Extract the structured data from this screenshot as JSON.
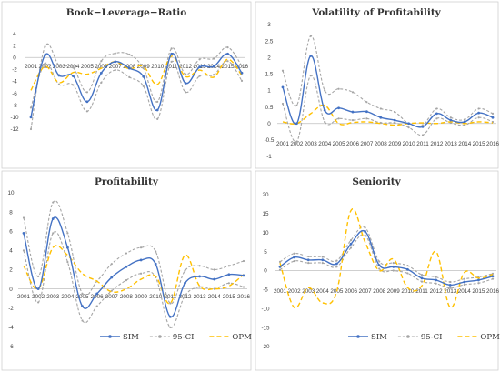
{
  "colors": {
    "SIM": "#4472C4",
    "CI": "#a5a5a5",
    "OPM": "#FFC000"
  },
  "legend": {
    "items": [
      {
        "key": "SIM",
        "label": "SIM",
        "style": "solid-marker"
      },
      {
        "key": "CI",
        "label": "95-CI",
        "style": "dashed-marker"
      },
      {
        "key": "OPM",
        "label": "OPM",
        "style": "dashed"
      }
    ]
  },
  "chart_data": [
    {
      "type": "line",
      "title": "Book−Leverage−Ratio",
      "ylim": [
        -12,
        4
      ],
      "yticks": [
        4,
        2,
        0,
        -2,
        -4,
        -6,
        -8,
        -10,
        -12
      ],
      "categories": [
        "2001",
        "2002",
        "2003",
        "2004",
        "2005",
        "2006",
        "2007",
        "2008",
        "2009",
        "2010",
        "2011",
        "2012",
        "2013",
        "2014",
        "2015",
        "2016"
      ],
      "series": [
        {
          "name": "SIM",
          "values": [
            -10,
            0.4,
            -3,
            -3.1,
            -7.4,
            -2.6,
            -0.7,
            -1.8,
            -3.2,
            -8.8,
            0.6,
            -4.3,
            -1.6,
            -1.5,
            0.6,
            -2.6
          ]
        },
        {
          "name": "95-CI",
          "values": [
            -12,
            1.8,
            -1.3,
            -1.7,
            -5.8,
            -0.6,
            0.7,
            0.5,
            -1.8,
            -7.4,
            1.5,
            -2.8,
            -0.3,
            -0.2,
            1.7,
            -1.4
          ]
        },
        {
          "name": "95-CI",
          "values": [
            -8.4,
            -1.0,
            -4.5,
            -4.6,
            -9.0,
            -4.2,
            -2.1,
            -3.3,
            -4.8,
            -10.3,
            -0.7,
            -5.8,
            -3.1,
            -2.9,
            -0.6,
            -3.9
          ]
        },
        {
          "name": "OPM",
          "values": [
            -5.5,
            -1.5,
            -4.2,
            -2.5,
            -2.8,
            -1.8,
            -0.7,
            -1.9,
            -1.5,
            -4.5,
            0.2,
            -3.2,
            -2.1,
            -3.3,
            -0.3,
            -3.0
          ]
        }
      ]
    },
    {
      "type": "line",
      "title": "Volatility of Profitability",
      "ylim": [
        -1,
        3
      ],
      "yticks": [
        3,
        2.5,
        2,
        1.5,
        1,
        0.5,
        0,
        -0.5,
        -1
      ],
      "categories": [
        "2001",
        "2002",
        "2003",
        "2004",
        "2005",
        "2006",
        "2007",
        "2008",
        "2009",
        "2010",
        "2011",
        "2012",
        "2013",
        "2014",
        "2015",
        "2016"
      ],
      "series": [
        {
          "name": "SIM",
          "values": [
            1.1,
            0.0,
            2.05,
            0.4,
            0.47,
            0.35,
            0.36,
            0.18,
            0.1,
            0.0,
            -0.1,
            0.3,
            0.1,
            0.05,
            0.32,
            0.18
          ]
        },
        {
          "name": "95-CI",
          "values": [
            1.6,
            0.55,
            2.65,
            1.0,
            1.05,
            0.95,
            0.65,
            0.45,
            0.35,
            0.0,
            -0.05,
            0.45,
            0.18,
            0.12,
            0.45,
            0.3
          ]
        },
        {
          "name": "95-CI",
          "values": [
            0.6,
            -0.55,
            1.45,
            0.05,
            0.15,
            0.1,
            0.15,
            0.02,
            0.02,
            -0.12,
            -0.35,
            0.15,
            0.02,
            -0.05,
            0.18,
            0.05
          ]
        },
        {
          "name": "OPM",
          "values": [
            0.05,
            0.0,
            0.3,
            0.55,
            0.0,
            0.03,
            0.05,
            0.0,
            -0.05,
            0.0,
            0.02,
            0.0,
            0.05,
            0.0,
            0.05,
            0.02
          ]
        }
      ]
    },
    {
      "type": "line",
      "title": "Profitability",
      "ylim": [
        -6,
        10
      ],
      "yticks": [
        10,
        8,
        6,
        4,
        2,
        0,
        -2,
        -4,
        -6
      ],
      "categories": [
        "2001",
        "2002",
        "2003",
        "2004",
        "2005",
        "2006",
        "2007",
        "2008",
        "2009",
        "2010",
        "2011",
        "2012",
        "2013",
        "2014",
        "2015",
        "2016"
      ],
      "series": [
        {
          "name": "SIM",
          "values": [
            5.8,
            0.0,
            7.3,
            4.3,
            -1.8,
            -0.5,
            1.2,
            2.3,
            3.0,
            2.6,
            -2.9,
            0.6,
            1.3,
            1.0,
            1.5,
            1.4
          ]
        },
        {
          "name": "95-CI",
          "values": [
            7.4,
            1.3,
            9.0,
            5.8,
            -0.5,
            0.8,
            2.6,
            3.7,
            4.3,
            3.9,
            -1.5,
            1.9,
            2.4,
            2.0,
            2.4,
            2.9
          ]
        },
        {
          "name": "95-CI",
          "values": [
            4.0,
            -1.4,
            5.8,
            2.8,
            -3.3,
            -1.8,
            -0.2,
            0.9,
            1.6,
            1.2,
            -4.0,
            -0.7,
            0.2,
            0.0,
            0.6,
            0.2
          ]
        },
        {
          "name": "OPM",
          "values": [
            2.4,
            0.0,
            4.3,
            3.5,
            1.6,
            0.8,
            -0.3,
            0.0,
            1.0,
            1.3,
            -1.5,
            3.5,
            0.3,
            0.0,
            0.3,
            1.5
          ]
        }
      ]
    },
    {
      "type": "line",
      "title": "Seniority",
      "ylim": [
        -20,
        20
      ],
      "yticks": [
        20,
        15,
        10,
        5,
        0,
        -5,
        -10,
        -15,
        -20
      ],
      "categories": [
        "2001",
        "2002",
        "2003",
        "2004",
        "2005",
        "2006",
        "2007",
        "2008",
        "2009",
        "2010",
        "2011",
        "2012",
        "2013",
        "2014",
        "2015",
        "2016"
      ],
      "series": [
        {
          "name": "SIM",
          "values": [
            1.0,
            3.5,
            2.8,
            2.8,
            1.8,
            7.0,
            10.3,
            1.4,
            1.0,
            0.3,
            -2.0,
            -2.5,
            -3.8,
            -3.0,
            -2.5,
            -1.5
          ]
        },
        {
          "name": "95-CI",
          "values": [
            2.3,
            4.5,
            3.7,
            3.6,
            2.6,
            8.0,
            11.3,
            2.4,
            2.0,
            1.3,
            -1.1,
            -1.7,
            -3.0,
            -2.2,
            -1.7,
            -0.8
          ]
        },
        {
          "name": "95-CI",
          "values": [
            0.2,
            2.5,
            2.0,
            2.0,
            1.0,
            6.0,
            9.3,
            0.5,
            0.0,
            -0.7,
            -2.9,
            -3.4,
            -4.6,
            -3.7,
            -3.3,
            -2.2
          ]
        },
        {
          "name": "OPM",
          "values": [
            2.0,
            -9.7,
            -4.5,
            -8.5,
            -5.5,
            15.8,
            7.5,
            0.0,
            3.0,
            -4.5,
            -4.0,
            5.0,
            -9.7,
            -0.5,
            -2.0,
            -1.0
          ]
        }
      ]
    }
  ]
}
